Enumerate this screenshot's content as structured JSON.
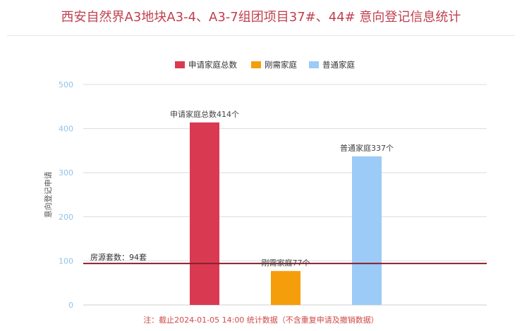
{
  "title": "西安自然界A3地块A3-4、A3-7组团项目37#、44# 意向登记信息统计",
  "footnote": "注：截止2024-01-05 14:00 统计数据（不含重复申请及撤销数据）",
  "chart_data": {
    "type": "bar",
    "categories": [
      "申请家庭总数",
      "刚需家庭",
      "普通家庭"
    ],
    "values": [
      414,
      77,
      337
    ],
    "colors": [
      "#d93a52",
      "#f59e0b",
      "#9ccbf7"
    ],
    "data_labels": [
      "申请家庭总数414个",
      "刚需家庭77个",
      "普通家庭337个"
    ],
    "legend": [
      "申请家庭总数",
      "刚需家庭",
      "普通家庭"
    ],
    "legend_position": "top-center",
    "ylabel": "意向登记申请",
    "xlabel": "",
    "ylim": [
      0,
      500
    ],
    "yticks": [
      0,
      100,
      200,
      300,
      400,
      500
    ],
    "grid": true,
    "reference_line": {
      "value": 94,
      "label": "房源套数：94套",
      "color": "#8b1f2b"
    }
  }
}
